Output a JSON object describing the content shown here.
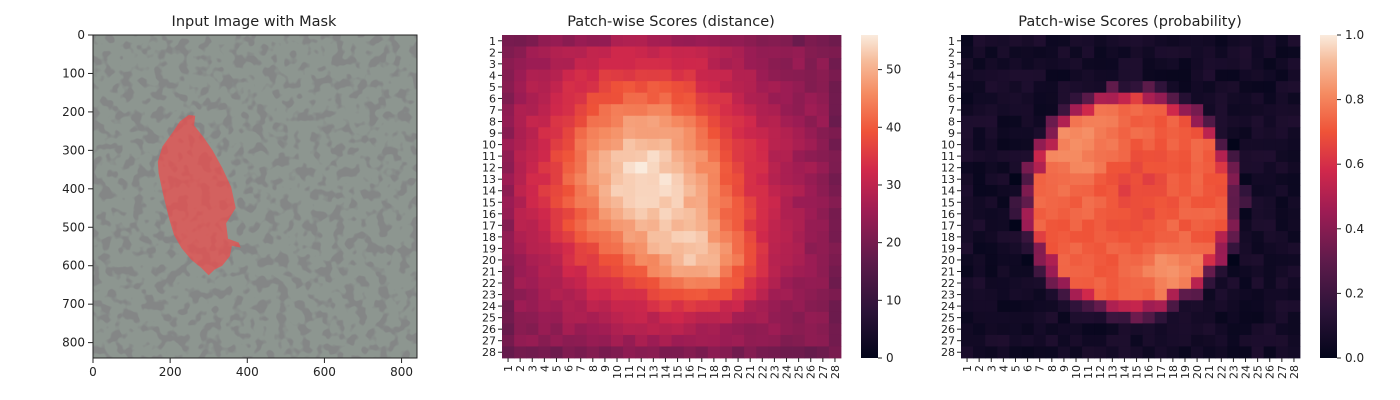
{
  "figure": {
    "panels": [
      {
        "title": "Input Image with Mask"
      },
      {
        "title": "Patch-wise Scores (distance)"
      },
      {
        "title": "Patch-wise Scores (probability)"
      }
    ]
  },
  "chart_data": [
    {
      "type": "image",
      "title": "Input Image with Mask",
      "x_ticks": [
        0,
        200,
        400,
        600,
        800
      ],
      "y_ticks": [
        0,
        100,
        200,
        300,
        400,
        500,
        600,
        700,
        800
      ],
      "xlim": [
        0,
        840
      ],
      "ylim": [
        840,
        0
      ],
      "mask_color": "#ff4040",
      "texture_colors": {
        "background": "#8d9690",
        "dark": "#3a3d3c"
      },
      "mask_outline": [
        [
          248,
          208
        ],
        [
          265,
          210
        ],
        [
          262,
          235
        ],
        [
          286,
          265
        ],
        [
          310,
          300
        ],
        [
          335,
          345
        ],
        [
          358,
          395
        ],
        [
          370,
          450
        ],
        [
          345,
          490
        ],
        [
          350,
          530
        ],
        [
          378,
          540
        ],
        [
          383,
          553
        ],
        [
          360,
          548
        ],
        [
          355,
          575
        ],
        [
          335,
          600
        ],
        [
          315,
          610
        ],
        [
          300,
          625
        ],
        [
          280,
          605
        ],
        [
          255,
          585
        ],
        [
          230,
          555
        ],
        [
          210,
          520
        ],
        [
          198,
          480
        ],
        [
          183,
          420
        ],
        [
          170,
          360
        ],
        [
          168,
          330
        ],
        [
          180,
          290
        ],
        [
          205,
          255
        ],
        [
          225,
          225
        ]
      ]
    },
    {
      "type": "heatmap",
      "title": "Patch-wise Scores (distance)",
      "rows": 28,
      "cols": 28,
      "x_ticks": [
        "1",
        "2",
        "3",
        "4",
        "5",
        "6",
        "7",
        "8",
        "9",
        "10",
        "11",
        "12",
        "13",
        "14",
        "15",
        "16",
        "17",
        "18",
        "19",
        "20",
        "21",
        "22",
        "23",
        "24",
        "25",
        "26",
        "27",
        "28"
      ],
      "y_ticks": [
        "1",
        "2",
        "3",
        "4",
        "5",
        "6",
        "7",
        "8",
        "9",
        "10",
        "11",
        "12",
        "13",
        "14",
        "15",
        "16",
        "17",
        "18",
        "19",
        "20",
        "21",
        "22",
        "23",
        "24",
        "25",
        "26",
        "27",
        "28"
      ],
      "colorbar": {
        "vmin": 0,
        "vmax": 56,
        "ticks": [
          0,
          10,
          20,
          30,
          40,
          50
        ]
      },
      "colormap": "rocket",
      "blobs": [
        {
          "cx": 12.0,
          "cy": 12.5,
          "sx": 6.0,
          "sy": 7.0,
          "amp": 28
        },
        {
          "cx": 17.5,
          "cy": 20.5,
          "sx": 3.2,
          "sy": 2.6,
          "amp": 15
        },
        {
          "cx": 15.5,
          "cy": 15.0,
          "sx": 6.0,
          "sy": 6.0,
          "amp": 6
        }
      ],
      "base": 22
    },
    {
      "type": "heatmap",
      "title": "Patch-wise Scores (probability)",
      "rows": 28,
      "cols": 28,
      "x_ticks": [
        "1",
        "2",
        "3",
        "4",
        "5",
        "6",
        "7",
        "8",
        "9",
        "10",
        "11",
        "12",
        "13",
        "14",
        "15",
        "16",
        "17",
        "18",
        "19",
        "20",
        "21",
        "22",
        "23",
        "24",
        "25",
        "26",
        "27",
        "28"
      ],
      "y_ticks": [
        "1",
        "2",
        "3",
        "4",
        "5",
        "6",
        "7",
        "8",
        "9",
        "10",
        "11",
        "12",
        "13",
        "14",
        "15",
        "16",
        "17",
        "18",
        "19",
        "20",
        "21",
        "22",
        "23",
        "24",
        "25",
        "26",
        "27",
        "28"
      ],
      "colorbar": {
        "vmin": 0.0,
        "vmax": 1.0,
        "ticks": [
          "0.0",
          "0.2",
          "0.4",
          "0.6",
          "0.8",
          "1.0"
        ]
      },
      "colormap": "rocket",
      "region": {
        "cx": 14.5,
        "cy": 15.0,
        "rx": 9.5,
        "ry": 10.5
      }
    }
  ]
}
